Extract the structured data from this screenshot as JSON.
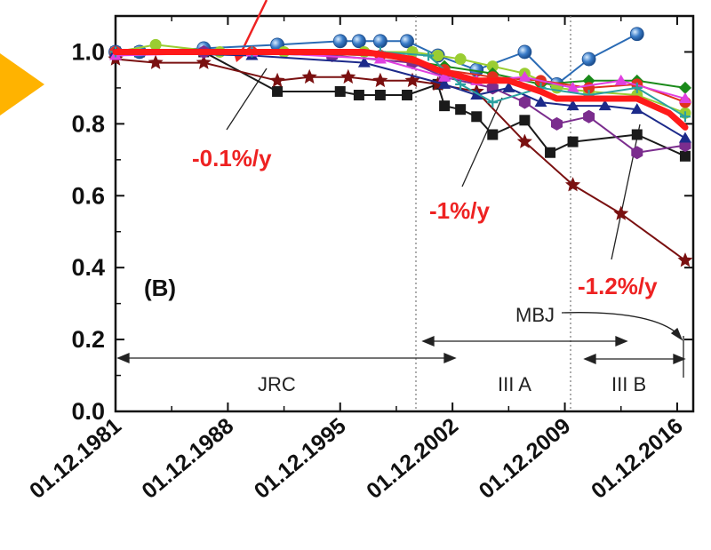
{
  "chart_data": {
    "type": "line",
    "title": "",
    "xlabel": "",
    "ylabel": "",
    "panel_label": "(B)",
    "ylim": [
      0.0,
      1.1
    ],
    "xlim": [
      "1981-12-01",
      "2017-12-01"
    ],
    "y_ticks": [
      "0.0",
      "0.2",
      "0.4",
      "0.6",
      "0.8",
      "1.0"
    ],
    "x_ticks": [
      "01.12.1981",
      "01.12.1988",
      "01.12.1995",
      "01.12.2002",
      "01.12.2009",
      "01.12.2016"
    ],
    "grid": false,
    "dividers": [
      "2002-01-01",
      "2010-03-01"
    ],
    "annotations": {
      "rate_1": "-0.1%/y",
      "rate_2": "-1%/y",
      "rate_3": "-1.2%/y",
      "period_1": "JRC",
      "period_2": "III A",
      "period_3": "III B",
      "mbj": "MBJ"
    },
    "series": [
      {
        "color": "#1a1a1a",
        "marker": "square",
        "x": [
          "1981-12-01",
          "1983-06-01",
          "1987-06-01",
          "1992-01-01",
          "1995-12-01",
          "1997-02-01",
          "1998-06-01",
          "2000-02-01",
          "2002-01-01",
          "2002-06-01",
          "2003-06-01",
          "2004-06-01",
          "2005-06-01",
          "2007-06-01",
          "2009-01-01",
          "2010-06-01",
          "2014-06-01",
          "2017-06-01"
        ],
        "y": [
          1.0,
          1.0,
          1.0,
          0.89,
          0.89,
          0.88,
          0.88,
          0.88,
          0.91,
          0.85,
          0.84,
          0.82,
          0.77,
          0.81,
          0.72,
          0.75,
          0.77,
          0.71
        ]
      },
      {
        "color": "#7a1010",
        "marker": "star",
        "x": [
          "1981-12-01",
          "1984-06-01",
          "1987-06-01",
          "1992-01-01",
          "1994-01-01",
          "1996-06-01",
          "1998-06-01",
          "2000-06-01",
          "2002-01-01",
          "2004-06-01",
          "2007-06-01",
          "2010-06-01",
          "2013-06-01",
          "2017-06-01"
        ],
        "y": [
          0.98,
          0.97,
          0.97,
          0.92,
          0.93,
          0.93,
          0.92,
          0.92,
          0.91,
          0.89,
          0.75,
          0.63,
          0.55,
          0.42
        ]
      },
      {
        "color": "#2a6bb5",
        "marker": "sphere",
        "x": [
          "1981-12-01",
          "1983-06-01",
          "1987-06-01",
          "1992-01-01",
          "1995-12-01",
          "1997-02-01",
          "1998-06-01",
          "2000-02-01",
          "2002-01-01",
          "2004-06-01",
          "2007-06-01",
          "2009-06-01",
          "2011-06-01",
          "2014-06-01"
        ],
        "y": [
          1.0,
          1.0,
          1.01,
          1.02,
          1.03,
          1.03,
          1.03,
          1.03,
          0.99,
          0.95,
          1.0,
          0.91,
          0.98,
          1.05
        ]
      },
      {
        "color": "#9acd32",
        "marker": "circle",
        "x": [
          "1981-12-01",
          "1984-06-01",
          "1988-06-01",
          "1992-06-01",
          "1997-06-01",
          "2000-06-01",
          "2002-01-01",
          "2003-06-01",
          "2005-06-01",
          "2007-06-01",
          "2009-06-01",
          "2011-06-01",
          "2014-06-01",
          "2017-06-01"
        ],
        "y": [
          1.0,
          1.02,
          1.0,
          1.0,
          1.0,
          1.0,
          0.99,
          0.98,
          0.96,
          0.94,
          0.9,
          0.89,
          0.88,
          0.83
        ]
      },
      {
        "color": "#7b2d8e",
        "marker": "hexagon",
        "x": [
          "1981-12-01",
          "1987-06-01",
          "1995-06-01",
          "2000-06-01",
          "2002-06-01",
          "2005-06-01",
          "2007-06-01",
          "2009-06-01",
          "2011-06-01",
          "2014-06-01",
          "2017-06-01"
        ],
        "y": [
          1.0,
          1.0,
          0.99,
          0.97,
          0.93,
          0.9,
          0.86,
          0.8,
          0.82,
          0.72,
          0.74
        ]
      },
      {
        "color": "#1a8a1a",
        "marker": "diamond",
        "x": [
          "1981-12-01",
          "1990-06-01",
          "1998-06-01",
          "2002-06-01",
          "2005-06-01",
          "2008-06-01",
          "2011-06-01",
          "2014-06-01",
          "2017-06-01"
        ],
        "y": [
          1.0,
          1.0,
          0.99,
          0.96,
          0.94,
          0.91,
          0.92,
          0.92,
          0.9
        ]
      },
      {
        "color": "#e0301e",
        "marker": "circle",
        "x": [
          "1981-12-01",
          "1990-06-01",
          "1998-06-01",
          "2002-06-01",
          "2005-06-01",
          "2008-06-01",
          "2011-06-01",
          "2014-06-01",
          "2017-06-01"
        ],
        "y": [
          1.0,
          1.0,
          0.99,
          0.95,
          0.93,
          0.92,
          0.9,
          0.91,
          0.86
        ]
      },
      {
        "color": "#1c2a8a",
        "marker": "triangle",
        "x": [
          "1981-12-01",
          "1990-06-01",
          "1997-06-01",
          "2002-06-01",
          "2004-06-01",
          "2006-06-01",
          "2008-06-01",
          "2010-06-01",
          "2012-06-01",
          "2014-06-01",
          "2017-06-01"
        ],
        "y": [
          1.0,
          0.99,
          0.97,
          0.91,
          0.88,
          0.9,
          0.86,
          0.85,
          0.85,
          0.84,
          0.76
        ]
      },
      {
        "color": "#e040e0",
        "marker": "triangle",
        "x": [
          "1981-12-01",
          "1990-06-01",
          "1998-06-01",
          "2002-06-01",
          "2004-06-01",
          "2007-06-01",
          "2010-06-01",
          "2013-06-01",
          "2017-06-01"
        ],
        "y": [
          0.99,
          1.0,
          0.98,
          0.93,
          0.92,
          0.93,
          0.9,
          0.92,
          0.87
        ]
      },
      {
        "color": "#2aa0a0",
        "marker": "plus",
        "x": [
          "1981-12-01",
          "1990-06-01",
          "1998-06-01",
          "2001-06-01",
          "2003-06-01",
          "2005-06-01",
          "2008-06-01",
          "2011-06-01",
          "2014-06-01",
          "2017-06-01"
        ],
        "y": [
          1.0,
          1.0,
          1.0,
          0.99,
          0.91,
          0.86,
          0.9,
          0.88,
          0.9,
          0.82
        ]
      },
      {
        "color": "#ff1a1a",
        "marker": "none",
        "width": 7,
        "x": [
          "1981-12-01",
          "1988-06-01",
          "1995-12-01",
          "1997-06-01",
          "2000-06-01",
          "2002-01-01",
          "2004-06-01",
          "2006-06-01",
          "2008-06-01",
          "2009-06-01",
          "2012-06-01",
          "2014-06-01",
          "2016-06-01",
          "2017-06-01"
        ],
        "y": [
          1.0,
          1.0,
          1.0,
          1.0,
          0.98,
          0.95,
          0.92,
          0.92,
          0.89,
          0.87,
          0.87,
          0.87,
          0.83,
          0.79
        ]
      }
    ]
  }
}
